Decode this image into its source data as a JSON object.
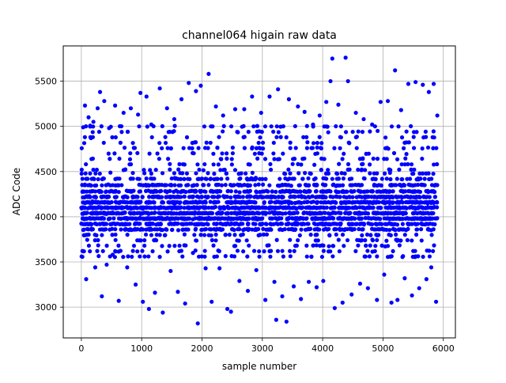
{
  "chart_data": {
    "type": "scatter",
    "title": "channel064 higain raw data",
    "xlabel": "sample number",
    "ylabel": "ADC Code",
    "xlim": [
      -300,
      6200
    ],
    "ylim": [
      2660,
      5890
    ],
    "xticks": [
      0,
      1000,
      2000,
      3000,
      4000,
      5000,
      6000
    ],
    "yticks": [
      3000,
      3500,
      4000,
      4500,
      5000,
      5500
    ],
    "grid": true,
    "marker_color": "#0000ff",
    "series": [
      {
        "n_samples": 5900,
        "x_range": [
          0,
          5899
        ],
        "description_bands": [
          3860,
          3920,
          3980,
          4040,
          4100,
          4160,
          4220,
          4280,
          4350,
          4420,
          4480
        ],
        "outliers": [
          [
            30,
            4990
          ],
          [
            60,
            5230
          ],
          [
            80,
            3310
          ],
          [
            120,
            5100
          ],
          [
            160,
            4870
          ],
          [
            200,
            5050
          ],
          [
            230,
            3440
          ],
          [
            270,
            5200
          ],
          [
            310,
            5380
          ],
          [
            340,
            3120
          ],
          [
            380,
            5280
          ],
          [
            420,
            3470
          ],
          [
            460,
            4980
          ],
          [
            520,
            3580
          ],
          [
            560,
            5230
          ],
          [
            620,
            3070
          ],
          [
            700,
            5150
          ],
          [
            760,
            3440
          ],
          [
            820,
            5200
          ],
          [
            900,
            3250
          ],
          [
            940,
            5130
          ],
          [
            980,
            5370
          ],
          [
            1020,
            3060
          ],
          [
            1080,
            5330
          ],
          [
            1120,
            2980
          ],
          [
            1160,
            5020
          ],
          [
            1220,
            3160
          ],
          [
            1300,
            5420
          ],
          [
            1350,
            2940
          ],
          [
            1420,
            5200
          ],
          [
            1480,
            3400
          ],
          [
            1540,
            5080
          ],
          [
            1600,
            3170
          ],
          [
            1660,
            5300
          ],
          [
            1720,
            3040
          ],
          [
            1780,
            5480
          ],
          [
            1850,
            3600
          ],
          [
            1900,
            5390
          ],
          [
            1930,
            2820
          ],
          [
            1980,
            5450
          ],
          [
            2060,
            3430
          ],
          [
            2110,
            5580
          ],
          [
            2160,
            3060
          ],
          [
            2230,
            5220
          ],
          [
            2290,
            3430
          ],
          [
            2350,
            5120
          ],
          [
            2420,
            2980
          ],
          [
            2480,
            2950
          ],
          [
            2550,
            5190
          ],
          [
            2620,
            3290
          ],
          [
            2700,
            5190
          ],
          [
            2760,
            3180
          ],
          [
            2830,
            5330
          ],
          [
            2900,
            3410
          ],
          [
            2980,
            5150
          ],
          [
            3050,
            3080
          ],
          [
            3120,
            5330
          ],
          [
            3200,
            3280
          ],
          [
            3230,
            2860
          ],
          [
            3260,
            5410
          ],
          [
            3330,
            3120
          ],
          [
            3400,
            2840
          ],
          [
            3440,
            5300
          ],
          [
            3520,
            3230
          ],
          [
            3590,
            5220
          ],
          [
            3640,
            3090
          ],
          [
            3700,
            5160
          ],
          [
            3770,
            3280
          ],
          [
            3840,
            5020
          ],
          [
            3900,
            3220
          ],
          [
            3950,
            5120
          ],
          [
            4010,
            3290
          ],
          [
            4060,
            5270
          ],
          [
            4130,
            5500
          ],
          [
            4160,
            5750
          ],
          [
            4200,
            2990
          ],
          [
            4260,
            5240
          ],
          [
            4330,
            3050
          ],
          [
            4380,
            5760
          ],
          [
            4420,
            5500
          ],
          [
            4480,
            3140
          ],
          [
            4550,
            5150
          ],
          [
            4620,
            3260
          ],
          [
            4680,
            5080
          ],
          [
            4750,
            3210
          ],
          [
            4820,
            5020
          ],
          [
            4900,
            3080
          ],
          [
            4960,
            5270
          ],
          [
            5020,
            3360
          ],
          [
            5080,
            5280
          ],
          [
            5140,
            3050
          ],
          [
            5200,
            5620
          ],
          [
            5240,
            3080
          ],
          [
            5300,
            5180
          ],
          [
            5360,
            3320
          ],
          [
            5420,
            5470
          ],
          [
            5480,
            3130
          ],
          [
            5540,
            5490
          ],
          [
            5600,
            3210
          ],
          [
            5660,
            5460
          ],
          [
            5720,
            3310
          ],
          [
            5760,
            5380
          ],
          [
            5800,
            3440
          ],
          [
            5840,
            5470
          ],
          [
            5880,
            3060
          ],
          [
            5900,
            5120
          ]
        ]
      }
    ]
  }
}
